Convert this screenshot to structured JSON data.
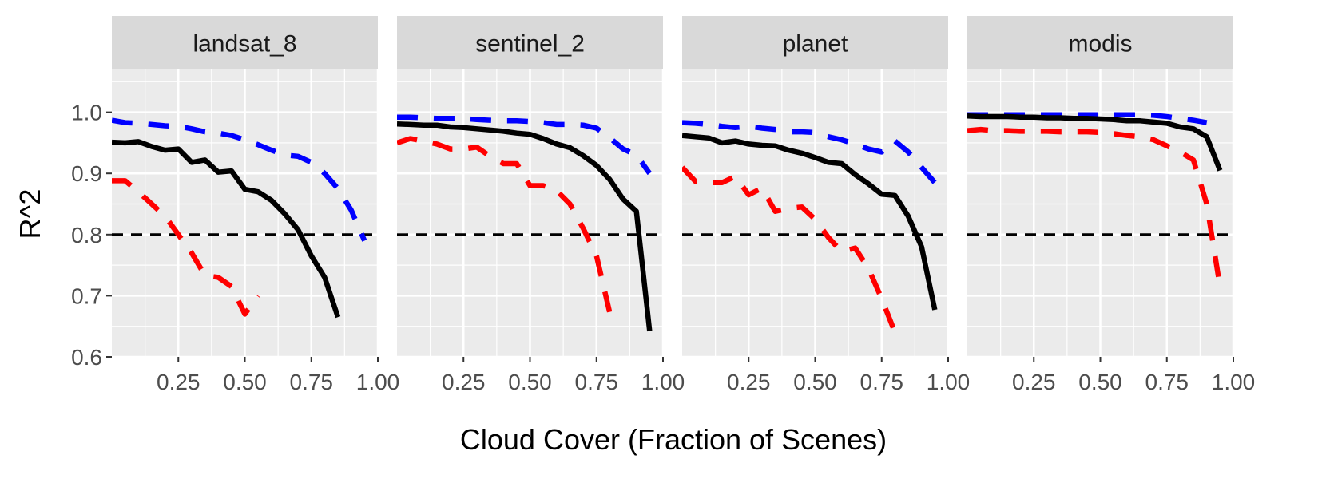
{
  "chart_data": {
    "type": "line",
    "xlabel": "Cloud Cover (Fraction of Scenes)",
    "ylabel": "R^2",
    "xlim": [
      0.0,
      1.0
    ],
    "ylim": [
      0.6,
      1.07
    ],
    "x_ticks": [
      0.25,
      0.5,
      0.75,
      1.0
    ],
    "x_tick_labels": [
      "0.25",
      "0.50",
      "0.75",
      "1.00"
    ],
    "y_ticks": [
      0.6,
      0.7,
      0.8,
      0.9,
      1.0
    ],
    "y_tick_labels": [
      "0.6",
      "0.7",
      "0.8",
      "0.9",
      "1.0"
    ],
    "threshold": 0.8,
    "grid": true,
    "legend": "none",
    "colors": {
      "black": "#000000",
      "blue": "#0000FF",
      "red": "#FF0000",
      "panel_bg": "#EBEBEB",
      "strip_bg": "#D9D9D9"
    },
    "panels": [
      {
        "title": "landsat_8",
        "series": [
          {
            "color": "#0000FF",
            "dash": true,
            "x": [
              0.0,
              0.05,
              0.1,
              0.15,
              0.2,
              0.25,
              0.3,
              0.35,
              0.4,
              0.45,
              0.5,
              0.55,
              0.6,
              0.65,
              0.7,
              0.75,
              0.8,
              0.85,
              0.9,
              0.95
            ],
            "y": [
              0.987,
              0.983,
              0.982,
              0.98,
              0.978,
              0.977,
              0.973,
              0.968,
              0.966,
              0.962,
              0.955,
              0.947,
              0.938,
              0.93,
              0.928,
              0.918,
              0.9,
              0.875,
              0.84,
              0.79
            ]
          },
          {
            "color": "#000000",
            "dash": false,
            "x": [
              0.0,
              0.05,
              0.1,
              0.15,
              0.2,
              0.25,
              0.3,
              0.35,
              0.4,
              0.45,
              0.5,
              0.55,
              0.6,
              0.65,
              0.7,
              0.75,
              0.8,
              0.85
            ],
            "y": [
              0.951,
              0.95,
              0.952,
              0.944,
              0.938,
              0.94,
              0.918,
              0.922,
              0.902,
              0.904,
              0.874,
              0.87,
              0.856,
              0.834,
              0.808,
              0.765,
              0.73,
              0.665
            ]
          },
          {
            "color": "#FF0000",
            "dash": true,
            "x": [
              0.0,
              0.05,
              0.1,
              0.15,
              0.2,
              0.25,
              0.3,
              0.35,
              0.4,
              0.45,
              0.5,
              0.55
            ],
            "y": [
              0.888,
              0.888,
              0.87,
              0.85,
              0.83,
              0.8,
              0.77,
              0.733,
              0.73,
              0.715,
              0.67,
              0.7
            ]
          }
        ]
      },
      {
        "title": "sentinel_2",
        "series": [
          {
            "color": "#0000FF",
            "dash": true,
            "x": [
              0.0,
              0.05,
              0.1,
              0.15,
              0.2,
              0.25,
              0.3,
              0.35,
              0.4,
              0.45,
              0.5,
              0.55,
              0.6,
              0.65,
              0.7,
              0.75,
              0.8,
              0.85,
              0.9,
              0.95
            ],
            "y": [
              0.992,
              0.992,
              0.991,
              0.99,
              0.99,
              0.99,
              0.988,
              0.987,
              0.986,
              0.986,
              0.985,
              0.983,
              0.98,
              0.98,
              0.979,
              0.974,
              0.958,
              0.94,
              0.93,
              0.9
            ]
          },
          {
            "color": "#000000",
            "dash": false,
            "x": [
              0.0,
              0.05,
              0.1,
              0.15,
              0.2,
              0.25,
              0.3,
              0.35,
              0.4,
              0.45,
              0.5,
              0.55,
              0.6,
              0.65,
              0.7,
              0.75,
              0.8,
              0.85,
              0.9,
              0.95
            ],
            "y": [
              0.981,
              0.98,
              0.979,
              0.979,
              0.976,
              0.975,
              0.973,
              0.971,
              0.969,
              0.966,
              0.964,
              0.957,
              0.948,
              0.942,
              0.929,
              0.913,
              0.89,
              0.858,
              0.838,
              0.642
            ]
          },
          {
            "color": "#FF0000",
            "dash": true,
            "x": [
              0.0,
              0.05,
              0.1,
              0.15,
              0.2,
              0.25,
              0.3,
              0.35,
              0.4,
              0.45,
              0.5,
              0.55,
              0.6,
              0.65,
              0.7,
              0.75,
              0.8
            ],
            "y": [
              0.95,
              0.957,
              0.953,
              0.948,
              0.94,
              0.94,
              0.943,
              0.928,
              0.916,
              0.916,
              0.88,
              0.88,
              0.872,
              0.85,
              0.81,
              0.765,
              0.672
            ]
          }
        ]
      },
      {
        "title": "planet",
        "series": [
          {
            "color": "#0000FF",
            "dash": true,
            "x": [
              0.0,
              0.05,
              0.1,
              0.15,
              0.2,
              0.25,
              0.3,
              0.35,
              0.4,
              0.45,
              0.5,
              0.55,
              0.6,
              0.65,
              0.7,
              0.75,
              0.8,
              0.85,
              0.9,
              0.95
            ],
            "y": [
              0.983,
              0.982,
              0.98,
              0.977,
              0.975,
              0.977,
              0.974,
              0.972,
              0.968,
              0.968,
              0.967,
              0.96,
              0.955,
              0.948,
              0.94,
              0.935,
              0.953,
              0.935,
              0.91,
              0.885
            ]
          },
          {
            "color": "#000000",
            "dash": false,
            "x": [
              0.0,
              0.05,
              0.1,
              0.15,
              0.2,
              0.25,
              0.3,
              0.35,
              0.4,
              0.45,
              0.5,
              0.55,
              0.6,
              0.65,
              0.7,
              0.75,
              0.8,
              0.85,
              0.9,
              0.95
            ],
            "y": [
              0.962,
              0.96,
              0.958,
              0.95,
              0.953,
              0.948,
              0.946,
              0.945,
              0.938,
              0.933,
              0.926,
              0.918,
              0.916,
              0.898,
              0.883,
              0.866,
              0.864,
              0.83,
              0.78,
              0.677
            ]
          },
          {
            "color": "#FF0000",
            "dash": true,
            "x": [
              0.0,
              0.05,
              0.1,
              0.15,
              0.2,
              0.25,
              0.3,
              0.35,
              0.4,
              0.45,
              0.5,
              0.55,
              0.6,
              0.65,
              0.7,
              0.75,
              0.8
            ],
            "y": [
              0.91,
              0.887,
              0.885,
              0.885,
              0.895,
              0.865,
              0.876,
              0.838,
              0.843,
              0.845,
              0.825,
              0.795,
              0.772,
              0.778,
              0.745,
              0.695,
              0.64
            ]
          }
        ]
      },
      {
        "title": "modis",
        "series": [
          {
            "color": "#0000FF",
            "dash": true,
            "x": [
              0.0,
              0.05,
              0.1,
              0.15,
              0.2,
              0.25,
              0.3,
              0.35,
              0.4,
              0.45,
              0.5,
              0.55,
              0.6,
              0.65,
              0.7,
              0.75,
              0.8,
              0.85,
              0.9
            ],
            "y": [
              0.996,
              0.996,
              0.996,
              0.996,
              0.996,
              0.996,
              0.996,
              0.996,
              0.996,
              0.996,
              0.996,
              0.996,
              0.996,
              0.996,
              0.995,
              0.993,
              0.99,
              0.987,
              0.983
            ]
          },
          {
            "color": "#000000",
            "dash": false,
            "x": [
              0.0,
              0.05,
              0.1,
              0.15,
              0.2,
              0.25,
              0.3,
              0.35,
              0.4,
              0.45,
              0.5,
              0.55,
              0.6,
              0.65,
              0.7,
              0.75,
              0.8,
              0.85,
              0.9,
              0.95
            ],
            "y": [
              0.994,
              0.993,
              0.993,
              0.993,
              0.992,
              0.992,
              0.991,
              0.991,
              0.99,
              0.99,
              0.989,
              0.988,
              0.986,
              0.986,
              0.984,
              0.982,
              0.976,
              0.973,
              0.96,
              0.905
            ]
          },
          {
            "color": "#FF0000",
            "dash": true,
            "x": [
              0.0,
              0.05,
              0.1,
              0.15,
              0.2,
              0.25,
              0.3,
              0.35,
              0.4,
              0.45,
              0.5,
              0.55,
              0.6,
              0.65,
              0.7,
              0.75,
              0.8,
              0.85,
              0.9,
              0.95
            ],
            "y": [
              0.97,
              0.972,
              0.97,
              0.97,
              0.969,
              0.969,
              0.969,
              0.968,
              0.968,
              0.968,
              0.967,
              0.965,
              0.962,
              0.96,
              0.955,
              0.945,
              0.935,
              0.922,
              0.85,
              0.715
            ]
          }
        ]
      }
    ]
  }
}
